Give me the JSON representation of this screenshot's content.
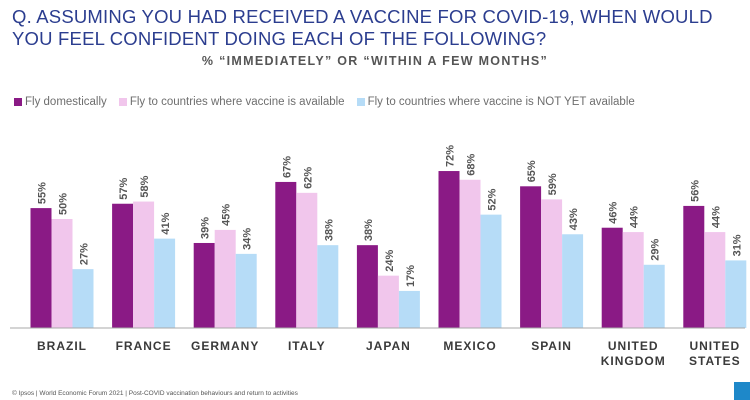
{
  "header": {
    "title": "Q. ASSUMING YOU HAD RECEIVED A VACCINE FOR COVID-19, WHEN WOULD YOU FEEL CONFIDENT DOING EACH OF THE FOLLOWING?",
    "subtitle": "% “IMMEDIATELY” OR “WITHIN A FEW MONTHS”"
  },
  "colors": {
    "title": "#2b3d8f",
    "baseline": "#a8a8a8"
  },
  "footer": {
    "source": "© Ipsos | World Economic Forum 2021 | Post-COVID vaccination behaviours and return to activities"
  },
  "chart_data": {
    "type": "bar",
    "title": "Q. ASSUMING YOU HAD RECEIVED A VACCINE FOR COVID-19, WHEN WOULD YOU FEEL CONFIDENT DOING EACH OF THE FOLLOWING?",
    "subtitle": "% “IMMEDIATELY” OR “WITHIN A FEW MONTHS”",
    "categories": [
      [
        "BRAZIL"
      ],
      [
        "FRANCE"
      ],
      [
        "GERMANY"
      ],
      [
        "ITALY"
      ],
      [
        "JAPAN"
      ],
      [
        "MEXICO"
      ],
      [
        "SPAIN"
      ],
      [
        "UNITED",
        "KINGDOM"
      ],
      [
        "UNITED",
        "STATES"
      ]
    ],
    "series": [
      {
        "name": "Fly domestically",
        "color": "#8a1a85",
        "values": [
          55,
          57,
          39,
          67,
          38,
          72,
          65,
          46,
          56
        ],
        "labels": [
          "55%",
          "57%",
          "39%",
          "67%",
          "38%",
          "72%",
          "65%",
          "46%",
          "56%"
        ]
      },
      {
        "name": "Fly to countries where vaccine is available",
        "color": "#f1c6ec",
        "values": [
          50,
          58,
          45,
          62,
          24,
          68,
          59,
          44,
          44
        ],
        "labels": [
          "50%",
          "58%",
          "45%",
          "62%",
          "24%",
          "68%",
          "59%",
          "44%",
          "44%"
        ]
      },
      {
        "name": "Fly to countries where vaccine is NOT YET available",
        "color": "#b6dcf7",
        "values": [
          27,
          41,
          34,
          38,
          17,
          52,
          43,
          29,
          31
        ],
        "labels": [
          "27%",
          "41%",
          "34%",
          "38%",
          "17%",
          "52%",
          "43%",
          "29%",
          "31%"
        ]
      }
    ],
    "ylim": [
      0,
      100
    ],
    "grid": false,
    "legend": "top-left",
    "xlabel": "",
    "ylabel": ""
  }
}
